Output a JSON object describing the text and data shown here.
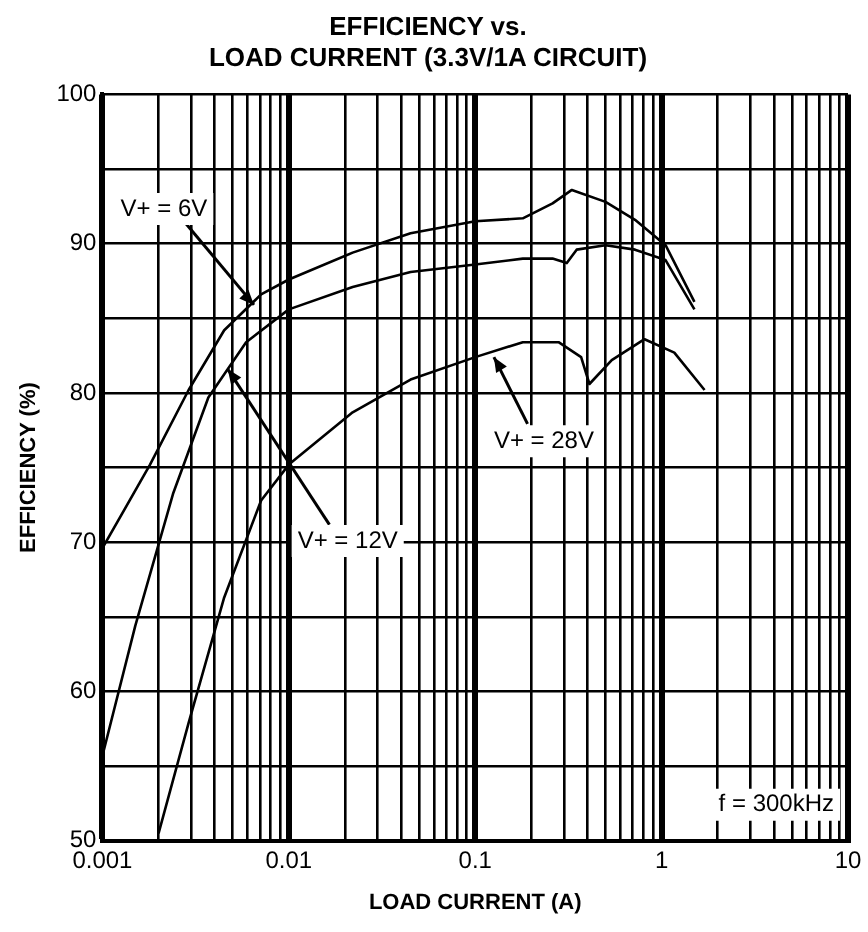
{
  "chart_data": {
    "type": "line",
    "title": "EFFICIENCY vs.\nLOAD CURRENT (3.3V/1A CIRCUIT)",
    "xlabel": "LOAD CURRENT (A)",
    "ylabel": "EFFICIENCY (%)",
    "log": "x",
    "grid": true,
    "legend": false,
    "marker": "none",
    "line_style": "solid",
    "xlim": [
      0.001,
      10
    ],
    "ylim": [
      50,
      100
    ],
    "xticks": [
      0.001,
      {
        "value": 0.002,
        "label": null
      },
      {
        "value": 0.003,
        "label": null
      },
      {
        "value": 0.004,
        "label": null
      },
      {
        "value": 0.005,
        "label": null
      },
      {
        "value": 0.006,
        "label": null
      },
      {
        "value": 0.007,
        "label": null
      },
      {
        "value": 0.008,
        "label": null
      },
      {
        "value": 0.009,
        "label": null
      },
      0.01,
      {
        "value": 0.02,
        "label": null
      },
      {
        "value": 0.03,
        "label": null
      },
      {
        "value": 0.04,
        "label": null
      },
      {
        "value": 0.05,
        "label": null
      },
      {
        "value": 0.06,
        "label": null
      },
      {
        "value": 0.07,
        "label": null
      },
      {
        "value": 0.08,
        "label": null
      },
      {
        "value": 0.09,
        "label": null
      },
      0.1,
      {
        "value": 0.2,
        "label": null
      },
      {
        "value": 0.3,
        "label": null
      },
      {
        "value": 0.4,
        "label": null
      },
      {
        "value": 0.5,
        "label": null
      },
      {
        "value": 0.6,
        "label": null
      },
      {
        "value": 0.7,
        "label": null
      },
      {
        "value": 0.8,
        "label": null
      },
      {
        "value": 0.9,
        "label": null
      },
      1,
      {
        "value": 2,
        "label": null
      },
      {
        "value": 3,
        "label": null
      },
      {
        "value": 4,
        "label": null
      },
      {
        "value": 5,
        "label": null
      },
      {
        "value": 6,
        "label": null
      },
      {
        "value": 7,
        "label": null
      },
      {
        "value": 8,
        "label": null
      },
      {
        "value": 9,
        "label": null
      },
      10
    ],
    "yticks": [
      50,
      {
        "value": 55,
        "label": null
      },
      60,
      {
        "value": 65,
        "label": null
      },
      70,
      {
        "value": 75,
        "label": null
      },
      80,
      {
        "value": 85,
        "label": null
      },
      90,
      {
        "value": 95,
        "label": null
      },
      100
    ],
    "series": [
      {
        "color": "#000000",
        "x": [
          0.001,
          0.0018,
          0.0029,
          0.0045,
          0.0071,
          0.01,
          0.022,
          0.045,
          0.1,
          0.18,
          0.26,
          0.33,
          0.5,
          0.72,
          1.05,
          1.5
        ],
        "values": [
          69.6,
          75.2,
          80.2,
          84.2,
          86.6,
          87.6,
          89.4,
          90.7,
          91.5,
          91.7,
          92.7,
          93.6,
          92.8,
          91.6,
          89.9,
          86.1
        ]
      },
      {
        "color": "#000000",
        "x": [
          0.001,
          0.0015,
          0.0024,
          0.0037,
          0.0059,
          0.01,
          0.022,
          0.045,
          0.1,
          0.18,
          0.26,
          0.31,
          0.35,
          0.5,
          0.72,
          1.05,
          1.5
        ],
        "values": [
          55.7,
          64.4,
          73.3,
          79.7,
          83.4,
          85.6,
          87.1,
          88.1,
          88.6,
          89,
          89,
          88.7,
          89.6,
          89.9,
          89.6,
          88.9,
          85.6
        ]
      },
      {
        "color": "#000000",
        "x": [
          0.002,
          0.0029,
          0.0045,
          0.0071,
          0.01,
          0.022,
          0.045,
          0.1,
          0.18,
          0.28,
          0.37,
          0.41,
          0.54,
          0.81,
          1.17,
          1.7
        ],
        "values": [
          50.5,
          57.9,
          66.3,
          72.8,
          75.2,
          78.7,
          80.9,
          82.4,
          83.4,
          83.4,
          82.4,
          80.6,
          82.2,
          83.6,
          82.7,
          80.2
        ]
      }
    ],
    "annotations": [
      {
        "text": "V+ = 6V",
        "x": 0.0065,
        "y": 85.9
      },
      {
        "text": "V+ = 12V",
        "x": 0.0047,
        "y": 81.6
      },
      {
        "text": "V+ = 28V",
        "x": 0.126,
        "y": 82.4
      },
      "f = 300kHz"
    ]
  }
}
